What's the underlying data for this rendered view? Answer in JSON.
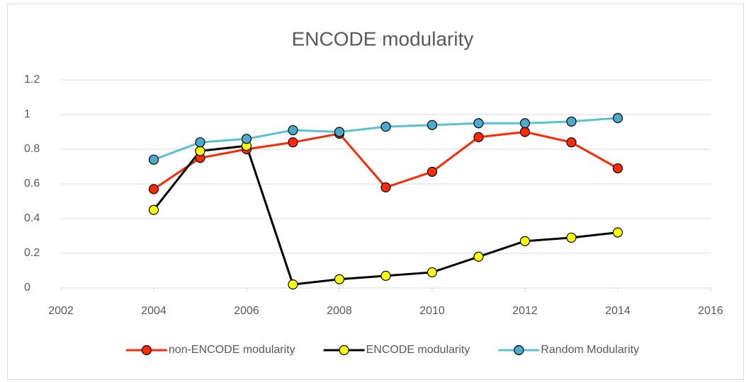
{
  "chart_data": {
    "type": "line",
    "title": "ENCODE modularity",
    "x": [
      2004,
      2005,
      2006,
      2007,
      2008,
      2009,
      2010,
      2011,
      2012,
      2013,
      2014
    ],
    "series": [
      {
        "name": "non-ENCODE modularity",
        "color": "#ff2a00",
        "marker_color": "#ff2a00",
        "values": [
          0.57,
          0.75,
          0.8,
          0.84,
          0.89,
          0.58,
          0.67,
          0.87,
          0.9,
          0.84,
          0.69
        ]
      },
      {
        "name": "ENCODE modularity",
        "color": "#000000",
        "marker_color": "#ffff00",
        "values": [
          0.45,
          0.79,
          0.82,
          0.02,
          0.05,
          0.07,
          0.09,
          0.18,
          0.27,
          0.29,
          0.32
        ]
      },
      {
        "name": "Random Modularity",
        "color": "#5bc0d0",
        "marker_color": "#4aaccc",
        "values": [
          0.74,
          0.84,
          0.86,
          0.91,
          0.9,
          0.93,
          0.94,
          0.95,
          0.95,
          0.96,
          0.98
        ]
      }
    ],
    "xlim": [
      2002,
      2016
    ],
    "xticks": [
      2002,
      2004,
      2006,
      2008,
      2010,
      2012,
      2014,
      2016
    ],
    "ylim": [
      0,
      1.2
    ],
    "yticks": [
      0,
      0.2,
      0.4,
      0.6,
      0.8,
      1,
      1.2
    ],
    "grid": true,
    "legend": "bottom"
  }
}
